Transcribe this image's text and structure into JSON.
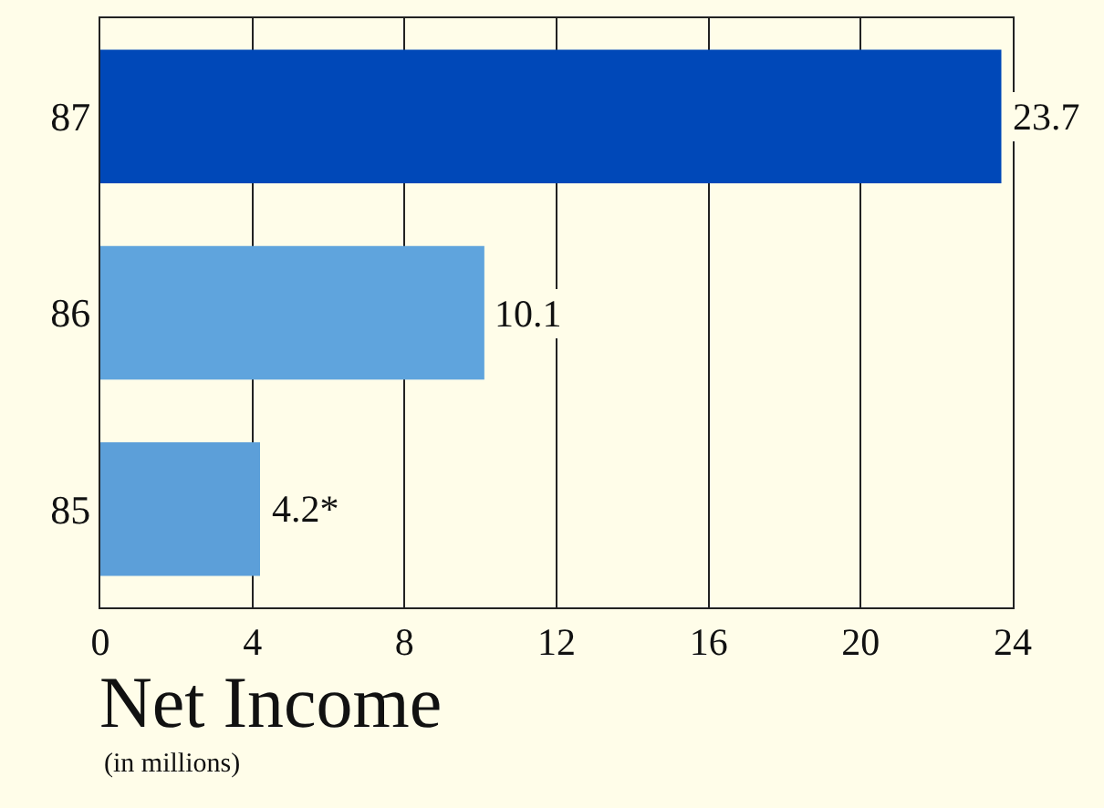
{
  "chart_data": {
    "type": "bar",
    "orientation": "horizontal",
    "title": "Net Income",
    "subtitle": "(in millions)",
    "categories": [
      "87",
      "86",
      "85"
    ],
    "values": [
      23.7,
      10.1,
      4.2
    ],
    "colors": [
      "#0048b8",
      "#5fa4dd",
      "#5c9fd9"
    ],
    "value_labels": [
      "23.7",
      "10.1",
      "4.2*"
    ],
    "xlim": [
      0,
      24
    ],
    "xticks": [
      0,
      4,
      8,
      12,
      16,
      20,
      24
    ],
    "grid": "x",
    "legend": false
  }
}
